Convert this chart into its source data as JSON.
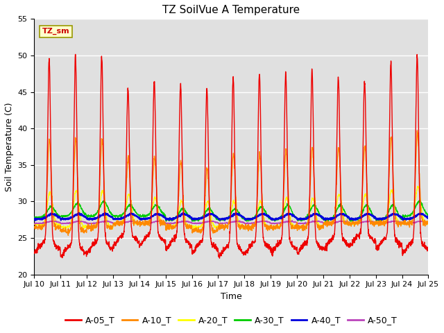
{
  "title": "TZ SoilVue A Temperature",
  "ylabel": "Soil Temperature (C)",
  "xlabel": "Time",
  "ylim": [
    20,
    55
  ],
  "yticks": [
    20,
    25,
    30,
    35,
    40,
    45,
    50,
    55
  ],
  "n_days": 15,
  "xtick_labels": [
    "Jul 10",
    "Jul 11",
    "Jul 12",
    "Jul 13",
    "Jul 14",
    "Jul 15",
    "Jul 16",
    "Jul 17",
    "Jul 18",
    "Jul 19",
    "Jul 20",
    "Jul 21",
    "Jul 22",
    "Jul 23",
    "Jul 24",
    "Jul 25"
  ],
  "series_colors": {
    "A-05_T": "#ee0000",
    "A-10_T": "#ff8800",
    "A-20_T": "#ffff00",
    "A-30_T": "#00cc00",
    "A-40_T": "#0000dd",
    "A-50_T": "#bb44bb"
  },
  "annotation_label": "TZ_sm",
  "plot_bg_color": "#e0e0e0",
  "fig_bg_color": "#ffffff",
  "grid_color": "#ffffff",
  "title_fontsize": 11,
  "axis_label_fontsize": 9,
  "tick_fontsize": 8,
  "legend_fontsize": 9,
  "line_width": 1.0
}
